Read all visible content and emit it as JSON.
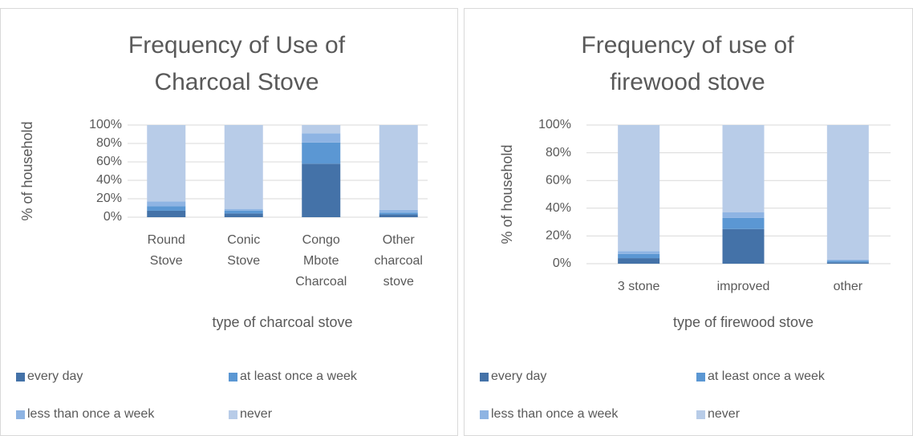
{
  "chart_data": [
    {
      "type": "stacked_bar",
      "title": "Frequency of Use of Charcoal Stove",
      "xlabel": "type of charcoal stove",
      "ylabel": "% of household",
      "categories": [
        "Round Stove",
        "Conic Stove",
        "Congo Mbote Charcoal",
        "Other charcoal stove"
      ],
      "series": [
        {
          "name": "every day",
          "color": "#4472a8",
          "values": [
            7,
            4,
            58,
            3
          ]
        },
        {
          "name": "at least once a week",
          "color": "#5b97d3",
          "values": [
            5,
            3,
            23,
            2
          ]
        },
        {
          "name": "less than once a week",
          "color": "#8eb4e3",
          "values": [
            5,
            2,
            10,
            3
          ]
        },
        {
          "name": "never",
          "color": "#b8cce8",
          "values": [
            83,
            91,
            9,
            92
          ]
        }
      ],
      "ylim": [
        0,
        100
      ],
      "yticks": [
        {
          "value": 0,
          "label": "0%"
        },
        {
          "value": 20,
          "label": "20%"
        },
        {
          "value": 40,
          "label": "40%"
        },
        {
          "value": 60,
          "label": "60%"
        },
        {
          "value": 80,
          "label": "80%"
        },
        {
          "value": 100,
          "label": "100%"
        }
      ],
      "grid": true,
      "legend": "bottom"
    },
    {
      "type": "stacked_bar",
      "title": "Frequency of use of firewood stove",
      "xlabel": "type of firewood stove",
      "ylabel": "% of household",
      "categories": [
        "3 stone",
        "improved",
        "other"
      ],
      "series": [
        {
          "name": "every day",
          "color": "#4472a8",
          "values": [
            4,
            25,
            1
          ]
        },
        {
          "name": "at least once a week",
          "color": "#5b97d3",
          "values": [
            3,
            8,
            1
          ]
        },
        {
          "name": "less than once a week",
          "color": "#8eb4e3",
          "values": [
            2,
            4,
            1
          ]
        },
        {
          "name": "never",
          "color": "#b8cce8",
          "values": [
            91,
            63,
            97
          ]
        }
      ],
      "ylim": [
        0,
        100
      ],
      "yticks": [
        {
          "value": 0,
          "label": "0%"
        },
        {
          "value": 20,
          "label": "20%"
        },
        {
          "value": 40,
          "label": "40%"
        },
        {
          "value": 60,
          "label": "60%"
        },
        {
          "value": 80,
          "label": "80%"
        },
        {
          "value": 100,
          "label": "100%"
        }
      ],
      "grid": true,
      "legend": "bottom"
    }
  ]
}
